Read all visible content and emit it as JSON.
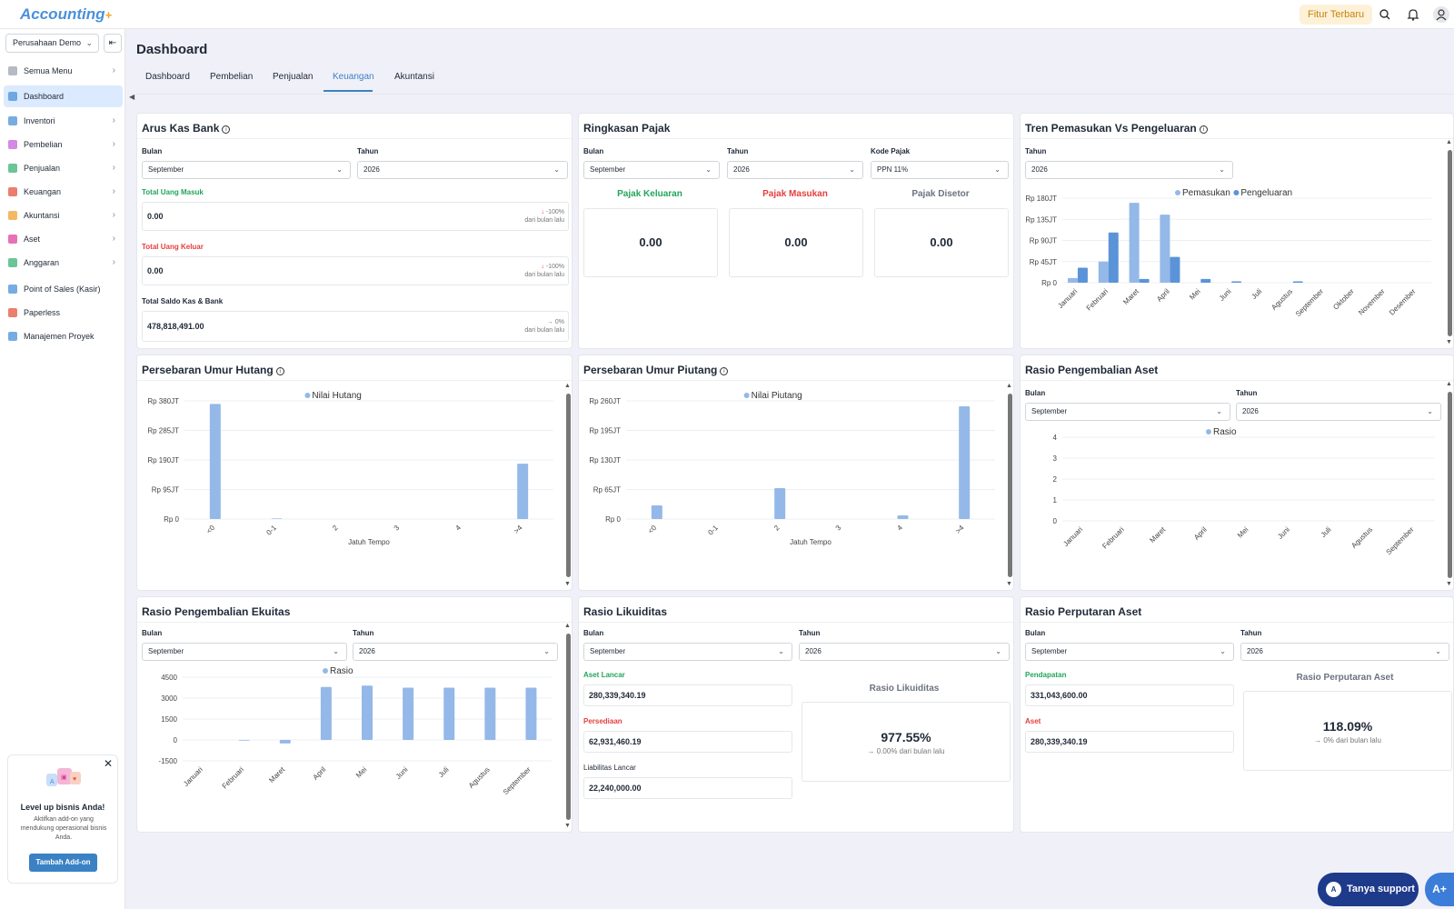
{
  "app": {
    "logo": "Accounting",
    "logo_plus": "+",
    "fitur_button": "Fitur Terbaru"
  },
  "sidebar": {
    "company": "Perusahaan Demo",
    "items": [
      {
        "label": "Semua Menu",
        "color": "#9ca3af",
        "arrow": true
      },
      {
        "label": "Dashboard",
        "color": "#4a90d9",
        "arrow": false
      },
      {
        "label": "Inventori",
        "color": "#4a90d9",
        "arrow": true
      },
      {
        "label": "Pembelian",
        "color": "#c561d9",
        "arrow": true
      },
      {
        "label": "Penjualan",
        "color": "#3bb273",
        "arrow": true
      },
      {
        "label": "Keuangan",
        "color": "#e5533d",
        "arrow": true
      },
      {
        "label": "Akuntansi",
        "color": "#f0a030",
        "arrow": true
      },
      {
        "label": "Aset",
        "color": "#e040a0",
        "arrow": true
      },
      {
        "label": "Anggaran",
        "color": "#3bb273",
        "arrow": true
      },
      {
        "label": "Point of Sales (Kasir)",
        "color": "#4a90d9",
        "arrow": false
      },
      {
        "label": "Paperless",
        "color": "#e5533d",
        "arrow": false
      },
      {
        "label": "Manajemen Proyek",
        "color": "#4a90d9",
        "arrow": false
      }
    ],
    "promo": {
      "title": "Level up bisnis Anda!",
      "text": "Aktifkan add-on yang mendukung operasional bisnis Anda.",
      "button": "Tambah Add-on"
    }
  },
  "page": {
    "title": "Dashboard",
    "tabs": [
      "Dashboard",
      "Pembelian",
      "Penjualan",
      "Keuangan",
      "Akuntansi"
    ],
    "active_tab": "Keuangan"
  },
  "labels": {
    "bulan": "Bulan",
    "tahun": "Tahun",
    "kode_pajak": "Kode Pajak"
  },
  "arus_kas": {
    "title": "Arus Kas Bank",
    "bulan": "September",
    "tahun": "2026",
    "masuk_label": "Total Uang Masuk",
    "masuk_value": "0.00",
    "masuk_change": "-100%",
    "masuk_note": "dari bulan lalu",
    "keluar_label": "Total Uang Keluar",
    "keluar_value": "0.00",
    "keluar_change": "-100%",
    "keluar_note": "dari bulan lalu",
    "saldo_label": "Total Saldo Kas & Bank",
    "saldo_value": "478,818,491.00",
    "saldo_change": "0%",
    "saldo_note": "dari bulan lalu"
  },
  "pajak": {
    "title": "Ringkasan Pajak",
    "bulan": "September",
    "tahun": "2026",
    "kode": "PPN 11%",
    "keluaran_label": "Pajak Keluaran",
    "keluaran_value": "0.00",
    "masukan_label": "Pajak Masukan",
    "masukan_value": "0.00",
    "disetor_label": "Pajak Disetor",
    "disetor_value": "0.00"
  },
  "tren": {
    "title": "Tren Pemasukan Vs Pengeluaran",
    "tahun": "2026"
  },
  "hutang": {
    "title": "Persebaran Umur Hutang"
  },
  "piutang": {
    "title": "Persebaran Umur Piutang"
  },
  "aset_ratio": {
    "title": "Rasio Pengembalian Aset",
    "bulan": "September",
    "tahun": "2026"
  },
  "ekuitas": {
    "title": "Rasio Pengembalian Ekuitas",
    "bulan": "September",
    "tahun": "2026"
  },
  "likuiditas": {
    "title": "Rasio Likuiditas",
    "bulan": "September",
    "tahun": "2026",
    "aset_lancar_label": "Aset Lancar",
    "aset_lancar_value": "280,339,340.19",
    "persediaan_label": "Persediaan",
    "persediaan_value": "62,931,460.19",
    "liabilitas_label": "Liabilitas Lancar",
    "liabilitas_value": "22,240,000.00",
    "ratio_label": "Rasio Likuiditas",
    "ratio_value": "977.55%",
    "ratio_note": "0.00% dari bulan lalu"
  },
  "perputaran": {
    "title": "Rasio Perputaran Aset",
    "bulan": "September",
    "tahun": "2026",
    "pendapatan_label": "Pendapatan",
    "pendapatan_value": "331,043,600.00",
    "aset_label": "Aset",
    "aset_value": "280,339,340.19",
    "ratio_label": "Rasio Perputaran Aset",
    "ratio_value": "118.09%",
    "ratio_note": "0% dari bulan lalu"
  },
  "support": {
    "label": "Tanya support",
    "fab": "A+"
  },
  "chart_data": [
    {
      "id": "tren",
      "type": "bar",
      "categories": [
        "Januari",
        "Februari",
        "Maret",
        "April",
        "Mei",
        "Juni",
        "Juli",
        "Agustus",
        "September",
        "Oktober",
        "November",
        "Desember"
      ],
      "series": [
        {
          "name": "Pemasukan",
          "color": "#94b8e8",
          "values": [
            10,
            45,
            170,
            145,
            0,
            0,
            0,
            0,
            0,
            0,
            0,
            0
          ]
        },
        {
          "name": "Pengeluaran",
          "color": "#5b93d9",
          "values": [
            32,
            107,
            8,
            55,
            8,
            3,
            0,
            3,
            0,
            0,
            0,
            0
          ]
        }
      ],
      "yticks": [
        "Rp 0",
        "Rp 45JT",
        "Rp 90JT",
        "Rp 135JT",
        "Rp 180JT"
      ],
      "ylim": [
        0,
        180
      ]
    },
    {
      "id": "hutang",
      "type": "bar",
      "categories": [
        "<0",
        "0-1",
        "2",
        "3",
        "4",
        ">4"
      ],
      "series": [
        {
          "name": "Nilai Hutang",
          "color": "#94b8e8",
          "values": [
            370,
            2,
            0,
            0,
            0,
            178
          ]
        }
      ],
      "yticks": [
        "Rp 0",
        "Rp 95JT",
        "Rp 190JT",
        "Rp 285JT",
        "Rp 380JT"
      ],
      "ylim": [
        0,
        380
      ],
      "xlabel": "Jatuh Tempo"
    },
    {
      "id": "piutang",
      "type": "bar",
      "categories": [
        "<0",
        "0-1",
        "2",
        "3",
        "4",
        ">4"
      ],
      "series": [
        {
          "name": "Nilai Piutang",
          "color": "#94b8e8",
          "values": [
            30,
            0,
            68,
            0,
            8,
            248
          ]
        }
      ],
      "yticks": [
        "Rp 0",
        "Rp 65JT",
        "Rp 130JT",
        "Rp 195JT",
        "Rp 260JT"
      ],
      "ylim": [
        0,
        260
      ],
      "xlabel": "Jatuh Tempo"
    },
    {
      "id": "aset",
      "type": "bar",
      "categories": [
        "Januari",
        "Februari",
        "Maret",
        "April",
        "Mei",
        "Juni",
        "Juli",
        "Agustus",
        "September"
      ],
      "series": [
        {
          "name": "Rasio",
          "color": "#94b8e8",
          "values": [
            0,
            0,
            0,
            0,
            0,
            0,
            0,
            0,
            0
          ]
        }
      ],
      "yticks": [
        "0",
        "1",
        "2",
        "3",
        "4"
      ],
      "ylim": [
        0,
        4
      ]
    },
    {
      "id": "ekuitas",
      "type": "bar",
      "categories": [
        "Januari",
        "Februari",
        "Maret",
        "April",
        "Mei",
        "Juni",
        "Juli",
        "Agustus",
        "September"
      ],
      "series": [
        {
          "name": "Rasio",
          "color": "#94b8e8",
          "values": [
            0,
            -50,
            -250,
            3800,
            3900,
            3750,
            3750,
            3750,
            3750
          ]
        }
      ],
      "yticks": [
        "-1500",
        "0",
        "1500",
        "3000",
        "4500"
      ],
      "ylim": [
        -1500,
        4500
      ]
    }
  ]
}
